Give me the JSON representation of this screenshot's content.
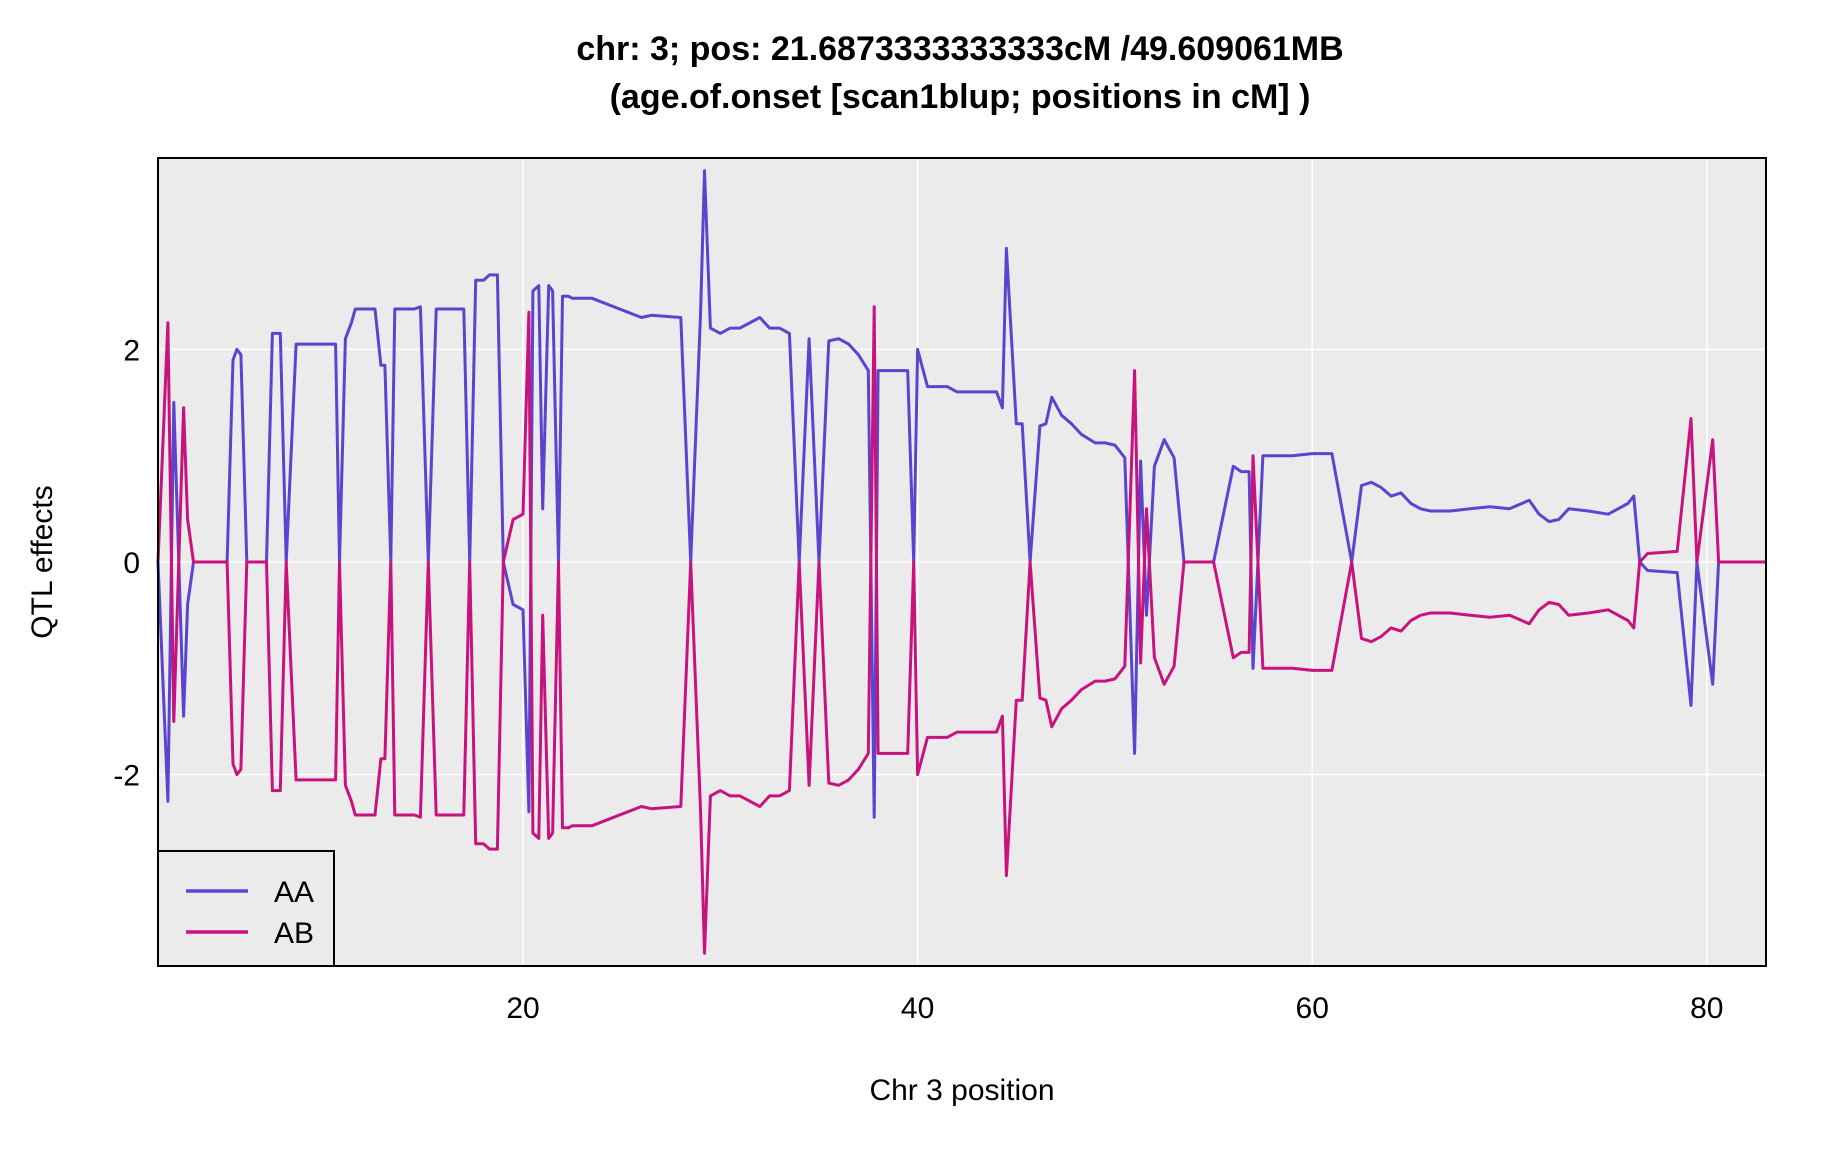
{
  "chart_data": {
    "type": "line",
    "title": "chr: 3; pos: 21.6873333333333cM /49.609061MB",
    "subtitle": "(age.of.onset [scan1blup; positions in cM] )",
    "xlabel": "Chr 3 position",
    "ylabel": "QTL effects",
    "xlim": [
      1.5,
      83
    ],
    "ylim": [
      -3.8,
      3.8
    ],
    "x_ticks": [
      20,
      40,
      60,
      80
    ],
    "y_ticks": [
      -2,
      0,
      2
    ],
    "x_tick_labels": [
      "20",
      "40",
      "60",
      "80"
    ],
    "y_tick_labels": [
      "-2",
      "0",
      "2"
    ],
    "grid": true,
    "legend_position": "bottom-left",
    "series": [
      {
        "name": "AA",
        "color": "#5b45cf",
        "x": [
          1.5,
          2.0,
          2.3,
          2.8,
          3.0,
          3.3,
          3.5,
          3.6,
          3.7,
          5.0,
          5.3,
          5.5,
          5.7,
          6.0,
          7.0,
          7.3,
          7.7,
          8.0,
          8.5,
          9.0,
          9.5,
          10.5,
          10.7,
          11.0,
          11.3,
          11.5,
          12.0,
          12.5,
          12.8,
          13.0,
          13.3,
          13.5,
          14.5,
          14.8,
          15.2,
          15.6,
          16.0,
          17.0,
          17.3,
          17.6,
          18.0,
          18.3,
          18.7,
          19.0,
          19.5,
          20.0,
          20.3,
          20.5,
          20.8,
          21.0,
          21.3,
          21.5,
          21.8,
          22.0,
          22.3,
          22.5,
          23.0,
          23.5,
          26.0,
          26.5,
          28.0,
          28.5,
          29.0,
          29.2,
          29.5,
          30.0,
          30.5,
          31.0,
          32.0,
          32.5,
          33.0,
          33.5,
          34.0,
          34.5,
          35.0,
          35.5,
          36.0,
          36.5,
          37.0,
          37.5,
          37.8,
          38.0,
          39.5,
          39.8,
          40.0,
          40.5,
          41.0,
          41.5,
          42.0,
          43.0,
          44.0,
          44.3,
          44.5,
          45.0,
          45.3,
          45.7,
          46.2,
          46.5,
          46.8,
          47.3,
          47.8,
          48.3,
          49.0,
          49.5,
          50.0,
          50.5,
          51.0,
          51.3,
          51.6,
          52.0,
          52.5,
          53.0,
          53.5,
          55.0,
          56.0,
          56.4,
          56.8,
          57.0,
          57.5,
          58.0,
          58.3,
          59.0,
          60.0,
          61.0,
          62.0,
          62.5,
          63.0,
          63.5,
          64.0,
          64.5,
          65.0,
          65.5,
          66.0,
          67.0,
          68.0,
          69.0,
          70.0,
          71.0,
          71.5,
          72.0,
          72.5,
          73.0,
          74.0,
          75.0,
          76.0,
          76.3,
          76.6,
          77.0,
          78.5,
          79.2,
          79.5,
          80.3,
          80.6,
          81.0,
          83.0
        ],
        "y": [
          0.0,
          -2.25,
          1.5,
          -1.45,
          -0.4,
          0.0,
          0.0,
          0.0,
          0.0,
          0.0,
          1.9,
          2.0,
          1.95,
          0.0,
          0.0,
          2.15,
          2.15,
          0.0,
          2.05,
          2.05,
          2.05,
          2.05,
          0.0,
          2.1,
          2.25,
          2.38,
          2.38,
          2.38,
          1.85,
          1.85,
          0.0,
          2.38,
          2.38,
          2.4,
          0.0,
          2.38,
          2.38,
          2.38,
          0.0,
          2.65,
          2.65,
          2.7,
          2.7,
          0.0,
          -0.4,
          -0.45,
          -2.35,
          2.55,
          2.6,
          0.5,
          2.6,
          2.55,
          0.0,
          2.5,
          2.5,
          2.48,
          2.48,
          2.48,
          2.3,
          2.32,
          2.3,
          0.0,
          2.35,
          3.68,
          2.2,
          2.15,
          2.2,
          2.2,
          2.3,
          2.2,
          2.2,
          2.15,
          0.0,
          2.1,
          0.0,
          2.08,
          2.1,
          2.05,
          1.95,
          1.8,
          -2.4,
          1.8,
          1.8,
          0.0,
          2.0,
          1.65,
          1.65,
          1.65,
          1.6,
          1.6,
          1.6,
          1.45,
          2.95,
          1.3,
          1.3,
          0.0,
          1.28,
          1.3,
          1.55,
          1.38,
          1.3,
          1.2,
          1.12,
          1.12,
          1.1,
          0.98,
          -1.8,
          0.95,
          -0.5,
          0.9,
          1.15,
          0.98,
          0.0,
          0.0,
          0.9,
          0.85,
          0.85,
          -1.0,
          1.0,
          1.0,
          1.0,
          1.0,
          1.02,
          1.02,
          0.0,
          0.72,
          0.75,
          0.7,
          0.62,
          0.65,
          0.55,
          0.5,
          0.48,
          0.48,
          0.5,
          0.52,
          0.5,
          0.58,
          0.45,
          0.38,
          0.4,
          0.5,
          0.48,
          0.45,
          0.55,
          0.62,
          0.0,
          -0.08,
          -0.1,
          -1.35,
          0.0,
          -1.15,
          0.0,
          0.0,
          0.0
        ]
      },
      {
        "name": "AB",
        "color": "#c8137f",
        "x": [
          1.5,
          2.0,
          2.3,
          2.8,
          3.0,
          3.3,
          3.5,
          3.6,
          3.7,
          5.0,
          5.3,
          5.5,
          5.7,
          6.0,
          7.0,
          7.3,
          7.7,
          8.0,
          8.5,
          9.0,
          9.5,
          10.5,
          10.7,
          11.0,
          11.3,
          11.5,
          12.0,
          12.5,
          12.8,
          13.0,
          13.3,
          13.5,
          14.5,
          14.8,
          15.2,
          15.6,
          16.0,
          17.0,
          17.3,
          17.6,
          18.0,
          18.3,
          18.7,
          19.0,
          19.5,
          20.0,
          20.3,
          20.5,
          20.8,
          21.0,
          21.3,
          21.5,
          21.8,
          22.0,
          22.3,
          22.5,
          23.0,
          23.5,
          26.0,
          26.5,
          28.0,
          28.5,
          29.0,
          29.2,
          29.5,
          30.0,
          30.5,
          31.0,
          32.0,
          32.5,
          33.0,
          33.5,
          34.0,
          34.5,
          35.0,
          35.5,
          36.0,
          36.5,
          37.0,
          37.5,
          37.8,
          38.0,
          39.5,
          39.8,
          40.0,
          40.5,
          41.0,
          41.5,
          42.0,
          43.0,
          44.0,
          44.3,
          44.5,
          45.0,
          45.3,
          45.7,
          46.2,
          46.5,
          46.8,
          47.3,
          47.8,
          48.3,
          49.0,
          49.5,
          50.0,
          50.5,
          51.0,
          51.3,
          51.6,
          52.0,
          52.5,
          53.0,
          53.5,
          55.0,
          56.0,
          56.4,
          56.8,
          57.0,
          57.5,
          58.0,
          58.3,
          59.0,
          60.0,
          61.0,
          62.0,
          62.5,
          63.0,
          63.5,
          64.0,
          64.5,
          65.0,
          65.5,
          66.0,
          67.0,
          68.0,
          69.0,
          70.0,
          71.0,
          71.5,
          72.0,
          72.5,
          73.0,
          74.0,
          75.0,
          76.0,
          76.3,
          76.6,
          77.0,
          78.5,
          79.2,
          79.5,
          80.3,
          80.6,
          81.0,
          83.0
        ],
        "y": [
          0.0,
          2.25,
          -1.5,
          1.45,
          0.4,
          0.0,
          0.0,
          0.0,
          0.0,
          0.0,
          -1.9,
          -2.0,
          -1.95,
          0.0,
          0.0,
          -2.15,
          -2.15,
          0.0,
          -2.05,
          -2.05,
          -2.05,
          -2.05,
          0.0,
          -2.1,
          -2.25,
          -2.38,
          -2.38,
          -2.38,
          -1.85,
          -1.85,
          0.0,
          -2.38,
          -2.38,
          -2.4,
          0.0,
          -2.38,
          -2.38,
          -2.38,
          0.0,
          -2.65,
          -2.65,
          -2.7,
          -2.7,
          0.0,
          0.4,
          0.45,
          2.35,
          -2.55,
          -2.6,
          -0.5,
          -2.6,
          -2.55,
          0.0,
          -2.5,
          -2.5,
          -2.48,
          -2.48,
          -2.48,
          -2.3,
          -2.32,
          -2.3,
          0.0,
          -2.35,
          -3.68,
          -2.2,
          -2.15,
          -2.2,
          -2.2,
          -2.3,
          -2.2,
          -2.2,
          -2.15,
          0.0,
          -2.1,
          0.0,
          -2.08,
          -2.1,
          -2.05,
          -1.95,
          -1.8,
          2.4,
          -1.8,
          -1.8,
          0.0,
          -2.0,
          -1.65,
          -1.65,
          -1.65,
          -1.6,
          -1.6,
          -1.6,
          -1.45,
          -2.95,
          -1.3,
          -1.3,
          0.0,
          -1.28,
          -1.3,
          -1.55,
          -1.38,
          -1.3,
          -1.2,
          -1.12,
          -1.12,
          -1.1,
          -0.98,
          1.8,
          -0.95,
          0.5,
          -0.9,
          -1.15,
          -0.98,
          0.0,
          0.0,
          -0.9,
          -0.85,
          -0.85,
          1.0,
          -1.0,
          -1.0,
          -1.0,
          -1.0,
          -1.02,
          -1.02,
          0.0,
          -0.72,
          -0.75,
          -0.7,
          -0.62,
          -0.65,
          -0.55,
          -0.5,
          -0.48,
          -0.48,
          -0.5,
          -0.52,
          -0.5,
          -0.58,
          -0.45,
          -0.38,
          -0.4,
          -0.5,
          -0.48,
          -0.45,
          -0.55,
          -0.62,
          0.0,
          0.08,
          0.1,
          1.35,
          0.0,
          1.15,
          0.0,
          0.0,
          0.0
        ]
      }
    ]
  },
  "colors": {
    "panel_background": "#ebebeb",
    "grid": "#ffffff",
    "aa": "#5b45cf",
    "ab": "#c8137f"
  }
}
